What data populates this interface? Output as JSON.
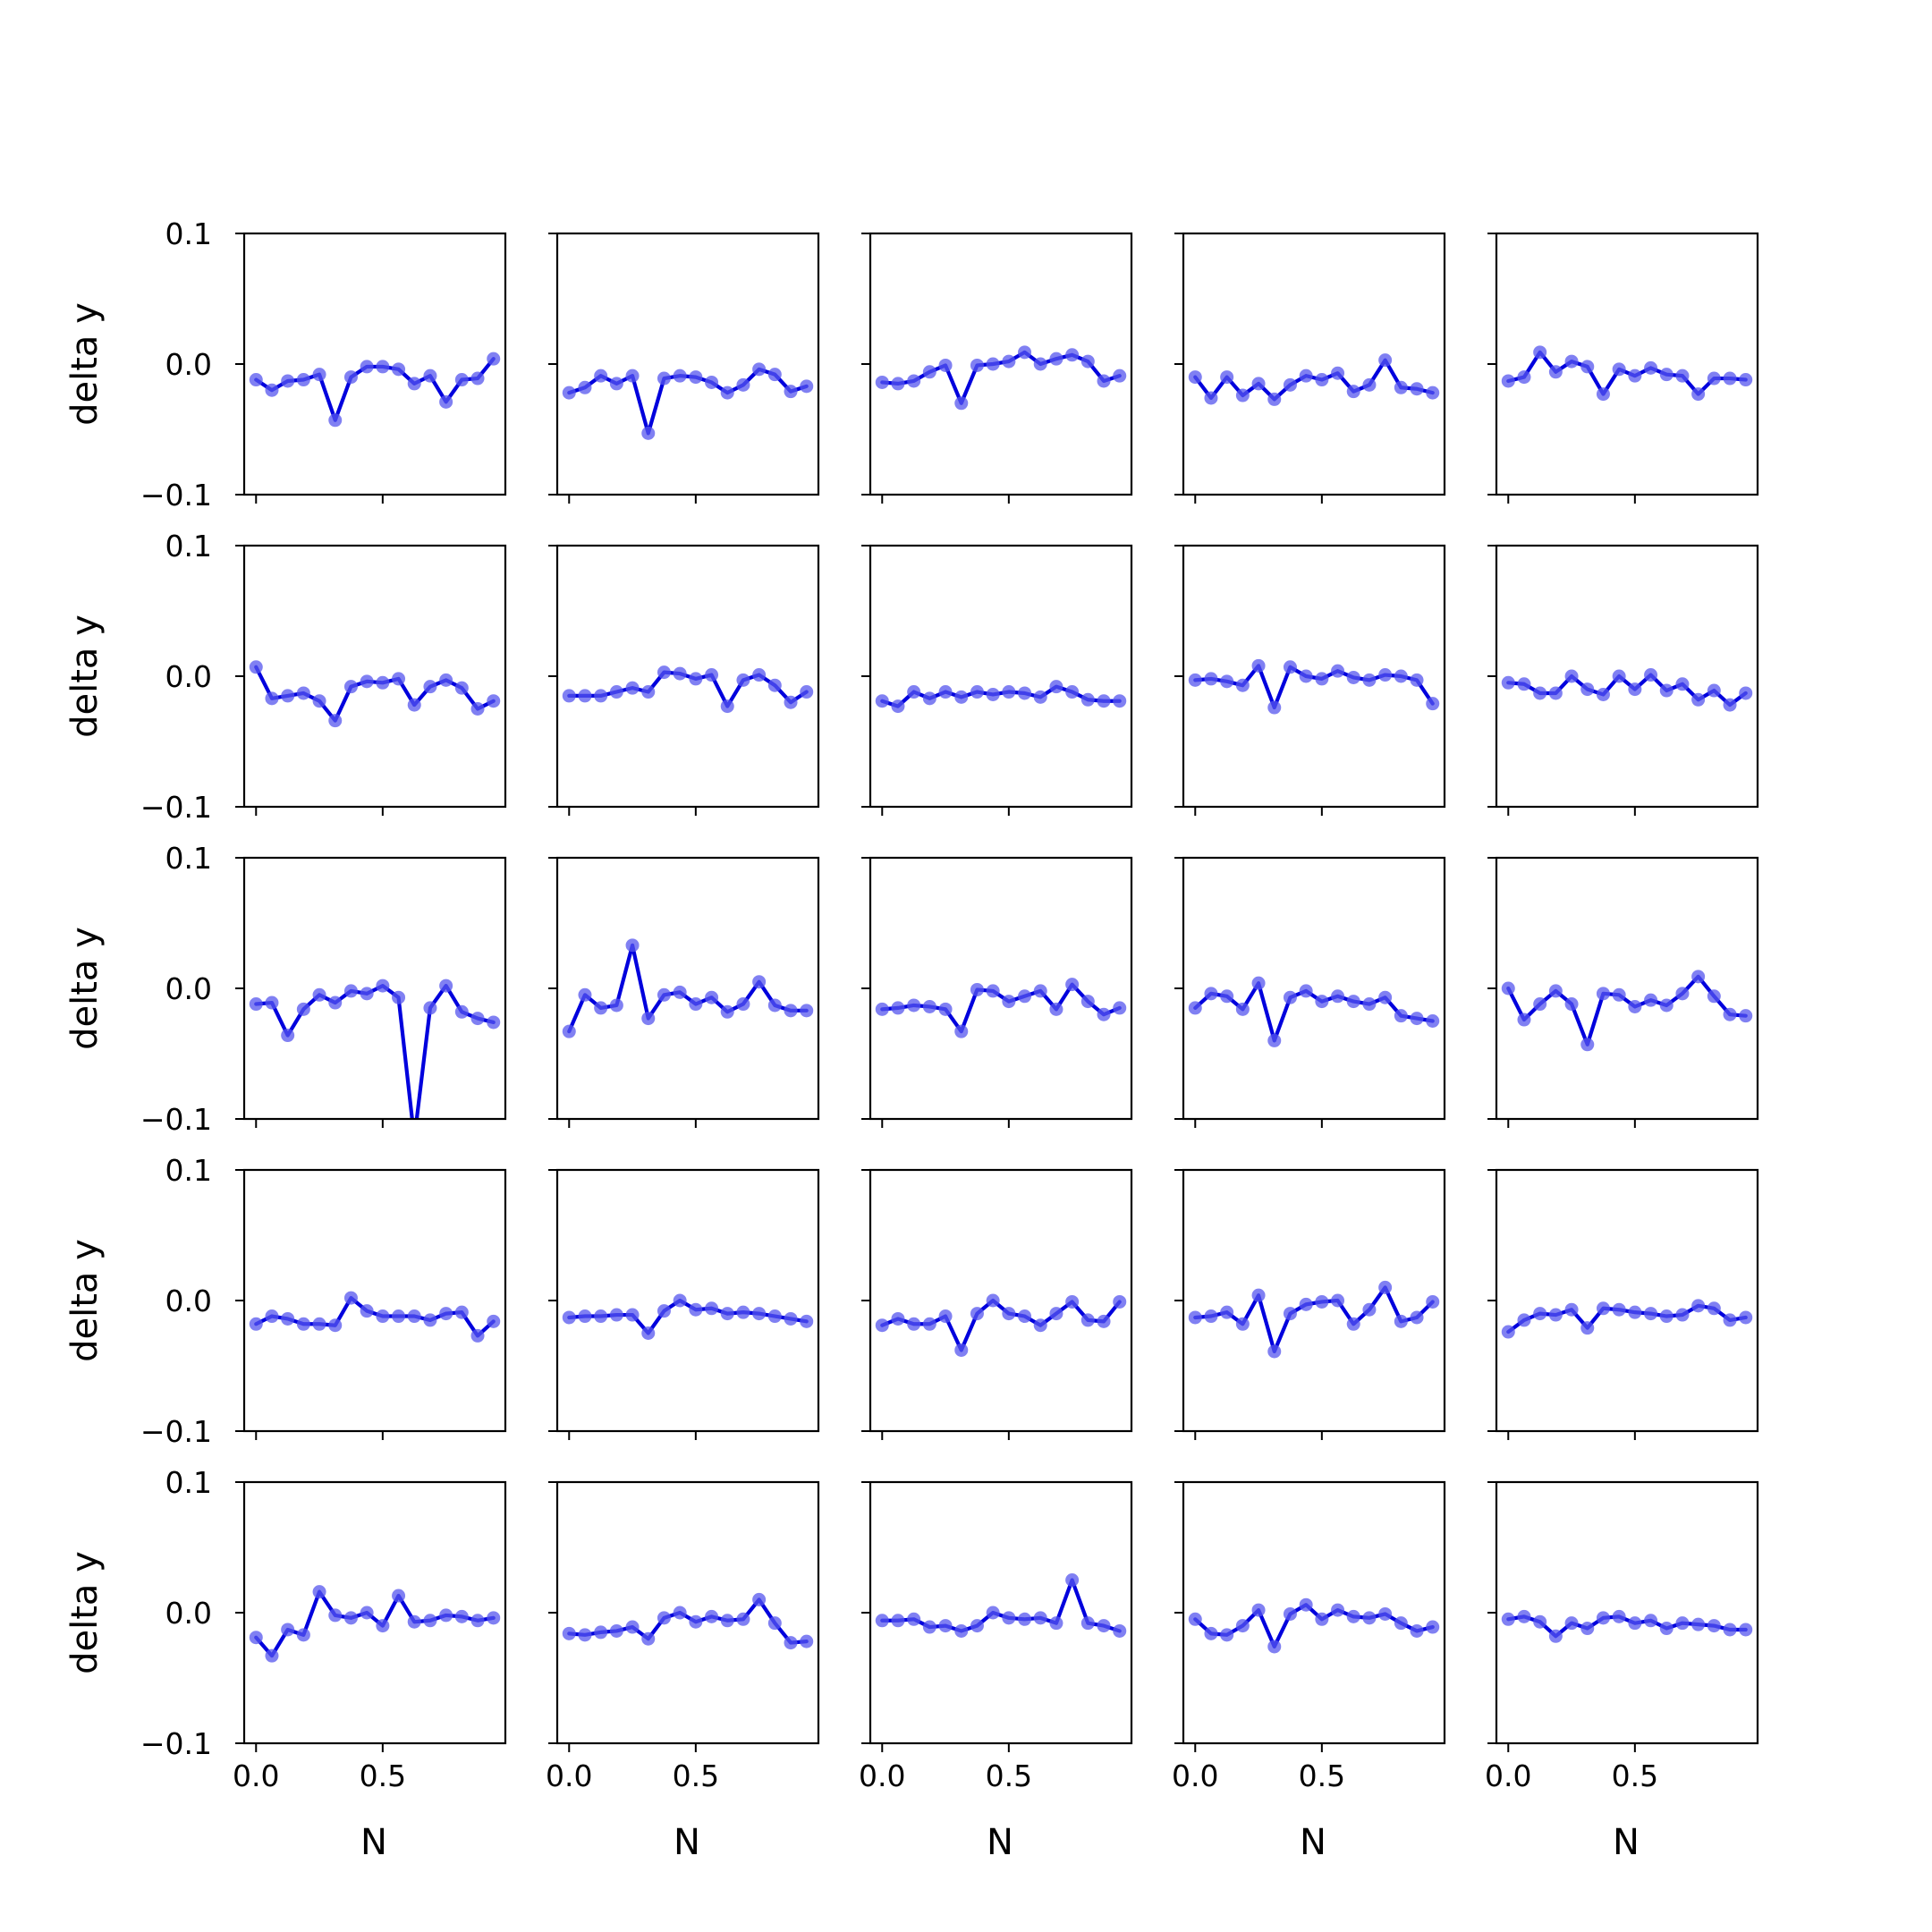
{
  "figure": {
    "xlabel": "N",
    "ylabel": "delta y"
  },
  "colors": {
    "line": "#0000dd",
    "marker": "#5555ee",
    "axes": "#000000",
    "background": "#ffffff"
  },
  "chart_data": {
    "type": "line",
    "layout": "5x5 grid of small multiples, shared axes",
    "xlabel": "N",
    "ylabel": "delta y",
    "xlim": [
      -0.046875,
      0.984375
    ],
    "ylim": [
      -0.1,
      0.1
    ],
    "xticks": [
      0.0,
      0.5
    ],
    "xtick_labels": [
      "0.0",
      "0.5"
    ],
    "yticks": [
      0.1,
      0.0,
      -0.1
    ],
    "ytick_labels": [
      "0.1",
      "0.0",
      "−0.1"
    ],
    "grid": false,
    "marker": "circle",
    "x": [
      0.0,
      0.0625,
      0.125,
      0.1875,
      0.25,
      0.3125,
      0.375,
      0.4375,
      0.5,
      0.5625,
      0.625,
      0.6875,
      0.75,
      0.8125,
      0.875,
      0.9375
    ],
    "panels": [
      {
        "values": [
          -0.012,
          -0.02,
          -0.013,
          -0.012,
          -0.008,
          -0.043,
          -0.01,
          -0.002,
          -0.002,
          -0.004,
          -0.015,
          -0.009,
          -0.029,
          -0.012,
          -0.011,
          0.004
        ]
      },
      {
        "values": [
          -0.022,
          -0.018,
          -0.009,
          -0.015,
          -0.009,
          -0.053,
          -0.011,
          -0.009,
          -0.01,
          -0.014,
          -0.022,
          -0.016,
          -0.004,
          -0.008,
          -0.021,
          -0.017
        ]
      },
      {
        "values": [
          -0.014,
          -0.015,
          -0.013,
          -0.006,
          -0.001,
          -0.03,
          -0.001,
          0.0,
          0.002,
          0.009,
          0.0,
          0.004,
          0.007,
          0.002,
          -0.013,
          -0.009
        ]
      },
      {
        "values": [
          -0.01,
          -0.026,
          -0.01,
          -0.024,
          -0.015,
          -0.027,
          -0.016,
          -0.009,
          -0.012,
          -0.007,
          -0.021,
          -0.016,
          0.003,
          -0.018,
          -0.019,
          -0.022
        ]
      },
      {
        "values": [
          -0.013,
          -0.01,
          0.009,
          -0.006,
          0.002,
          -0.002,
          -0.023,
          -0.004,
          -0.009,
          -0.003,
          -0.008,
          -0.009,
          -0.023,
          -0.011,
          -0.011,
          -0.012
        ]
      },
      {
        "values": [
          0.007,
          -0.017,
          -0.015,
          -0.013,
          -0.019,
          -0.034,
          -0.008,
          -0.004,
          -0.005,
          -0.002,
          -0.022,
          -0.008,
          -0.003,
          -0.009,
          -0.025,
          -0.019
        ]
      },
      {
        "values": [
          -0.015,
          -0.015,
          -0.015,
          -0.012,
          -0.009,
          -0.012,
          0.003,
          0.002,
          -0.002,
          0.001,
          -0.023,
          -0.003,
          0.001,
          -0.007,
          -0.02,
          -0.012
        ]
      },
      {
        "values": [
          -0.019,
          -0.023,
          -0.012,
          -0.017,
          -0.012,
          -0.016,
          -0.012,
          -0.014,
          -0.012,
          -0.013,
          -0.016,
          -0.008,
          -0.012,
          -0.018,
          -0.019,
          -0.019
        ]
      },
      {
        "values": [
          -0.003,
          -0.002,
          -0.004,
          -0.007,
          0.008,
          -0.024,
          0.007,
          0.0,
          -0.002,
          0.004,
          -0.001,
          -0.003,
          0.001,
          0.0,
          -0.003,
          -0.021
        ]
      },
      {
        "values": [
          -0.005,
          -0.006,
          -0.013,
          -0.013,
          0.0,
          -0.01,
          -0.014,
          0.0,
          -0.01,
          0.001,
          -0.011,
          -0.006,
          -0.018,
          -0.011,
          -0.022,
          -0.013
        ]
      },
      {
        "values": [
          -0.012,
          -0.011,
          -0.036,
          -0.016,
          -0.005,
          -0.011,
          -0.002,
          -0.004,
          0.002,
          -0.007,
          -0.115,
          -0.015,
          0.002,
          -0.018,
          -0.023,
          -0.026
        ]
      },
      {
        "values": [
          -0.033,
          -0.005,
          -0.015,
          -0.013,
          0.033,
          -0.023,
          -0.005,
          -0.003,
          -0.012,
          -0.007,
          -0.018,
          -0.012,
          0.005,
          -0.013,
          -0.017,
          -0.017
        ]
      },
      {
        "values": [
          -0.016,
          -0.015,
          -0.013,
          -0.014,
          -0.016,
          -0.033,
          -0.001,
          -0.002,
          -0.01,
          -0.006,
          -0.002,
          -0.016,
          0.003,
          -0.01,
          -0.02,
          -0.015
        ]
      },
      {
        "values": [
          -0.015,
          -0.004,
          -0.006,
          -0.016,
          0.004,
          -0.04,
          -0.007,
          -0.002,
          -0.01,
          -0.006,
          -0.01,
          -0.012,
          -0.007,
          -0.021,
          -0.023,
          -0.025
        ]
      },
      {
        "values": [
          0.0,
          -0.024,
          -0.012,
          -0.002,
          -0.012,
          -0.043,
          -0.004,
          -0.005,
          -0.014,
          -0.009,
          -0.013,
          -0.004,
          0.009,
          -0.006,
          -0.02,
          -0.021
        ]
      },
      {
        "values": [
          -0.018,
          -0.012,
          -0.014,
          -0.018,
          -0.018,
          -0.019,
          0.002,
          -0.008,
          -0.012,
          -0.012,
          -0.012,
          -0.015,
          -0.01,
          -0.009,
          -0.027,
          -0.016
        ]
      },
      {
        "values": [
          -0.013,
          -0.012,
          -0.012,
          -0.011,
          -0.011,
          -0.025,
          -0.008,
          0.0,
          -0.007,
          -0.006,
          -0.01,
          -0.009,
          -0.01,
          -0.012,
          -0.014,
          -0.016
        ]
      },
      {
        "values": [
          -0.019,
          -0.014,
          -0.018,
          -0.018,
          -0.012,
          -0.038,
          -0.01,
          0.0,
          -0.01,
          -0.012,
          -0.019,
          -0.01,
          -0.001,
          -0.015,
          -0.016,
          -0.001
        ]
      },
      {
        "values": [
          -0.013,
          -0.012,
          -0.009,
          -0.018,
          0.004,
          -0.039,
          -0.01,
          -0.003,
          -0.001,
          0.0,
          -0.018,
          -0.007,
          0.01,
          -0.016,
          -0.013,
          -0.001
        ]
      },
      {
        "values": [
          -0.024,
          -0.015,
          -0.01,
          -0.011,
          -0.007,
          -0.021,
          -0.006,
          -0.007,
          -0.009,
          -0.01,
          -0.012,
          -0.011,
          -0.004,
          -0.006,
          -0.015,
          -0.013
        ]
      },
      {
        "values": [
          -0.019,
          -0.033,
          -0.013,
          -0.017,
          0.016,
          -0.002,
          -0.004,
          0.0,
          -0.01,
          0.013,
          -0.007,
          -0.006,
          -0.002,
          -0.003,
          -0.006,
          -0.004
        ]
      },
      {
        "values": [
          -0.016,
          -0.017,
          -0.015,
          -0.014,
          -0.011,
          -0.02,
          -0.004,
          0.0,
          -0.007,
          -0.003,
          -0.006,
          -0.005,
          0.01,
          -0.008,
          -0.023,
          -0.022
        ]
      },
      {
        "values": [
          -0.006,
          -0.006,
          -0.005,
          -0.011,
          -0.01,
          -0.014,
          -0.01,
          0.0,
          -0.004,
          -0.005,
          -0.004,
          -0.008,
          0.025,
          -0.008,
          -0.01,
          -0.014
        ]
      },
      {
        "values": [
          -0.005,
          -0.016,
          -0.017,
          -0.01,
          0.002,
          -0.026,
          -0.001,
          0.006,
          -0.005,
          0.002,
          -0.003,
          -0.004,
          -0.001,
          -0.008,
          -0.014,
          -0.011
        ]
      },
      {
        "values": [
          -0.005,
          -0.003,
          -0.007,
          -0.018,
          -0.008,
          -0.012,
          -0.004,
          -0.003,
          -0.008,
          -0.006,
          -0.012,
          -0.008,
          -0.009,
          -0.01,
          -0.013,
          -0.013
        ]
      }
    ]
  }
}
